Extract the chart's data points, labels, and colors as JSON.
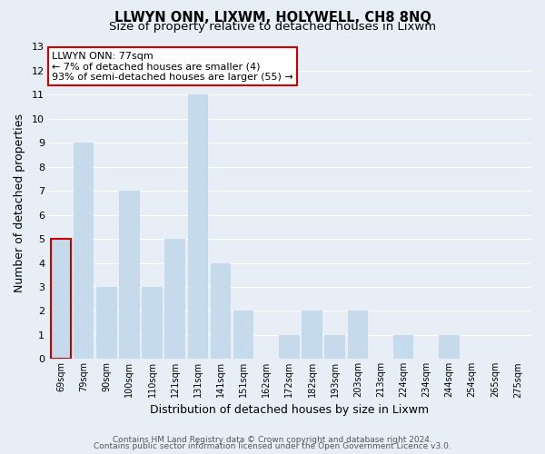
{
  "title": "LLWYN ONN, LIXWM, HOLYWELL, CH8 8NQ",
  "subtitle": "Size of property relative to detached houses in Lixwm",
  "xlabel": "Distribution of detached houses by size in Lixwm",
  "ylabel": "Number of detached properties",
  "bar_labels": [
    "69sqm",
    "79sqm",
    "90sqm",
    "100sqm",
    "110sqm",
    "121sqm",
    "131sqm",
    "141sqm",
    "151sqm",
    "162sqm",
    "172sqm",
    "182sqm",
    "193sqm",
    "203sqm",
    "213sqm",
    "224sqm",
    "234sqm",
    "244sqm",
    "254sqm",
    "265sqm",
    "275sqm"
  ],
  "bar_values": [
    5,
    9,
    3,
    7,
    3,
    5,
    11,
    4,
    2,
    0,
    1,
    2,
    1,
    2,
    0,
    1,
    0,
    1,
    0,
    0,
    0
  ],
  "bar_color": "#c5daea",
  "highlight_bar_index": 0,
  "highlight_bar_edge_color": "#cc0000",
  "ylim": [
    0,
    13
  ],
  "yticks": [
    0,
    1,
    2,
    3,
    4,
    5,
    6,
    7,
    8,
    9,
    10,
    11,
    12,
    13
  ],
  "annotation_title": "LLWYN ONN: 77sqm",
  "annotation_line1": "← 7% of detached houses are smaller (4)",
  "annotation_line2": "93% of semi-detached houses are larger (55) →",
  "footer_line1": "Contains HM Land Registry data © Crown copyright and database right 2024.",
  "footer_line2": "Contains public sector information licensed under the Open Government Licence v3.0.",
  "background_color": "#e8eef5",
  "grid_color": "#ffffff",
  "title_fontsize": 10.5,
  "subtitle_fontsize": 9.5
}
